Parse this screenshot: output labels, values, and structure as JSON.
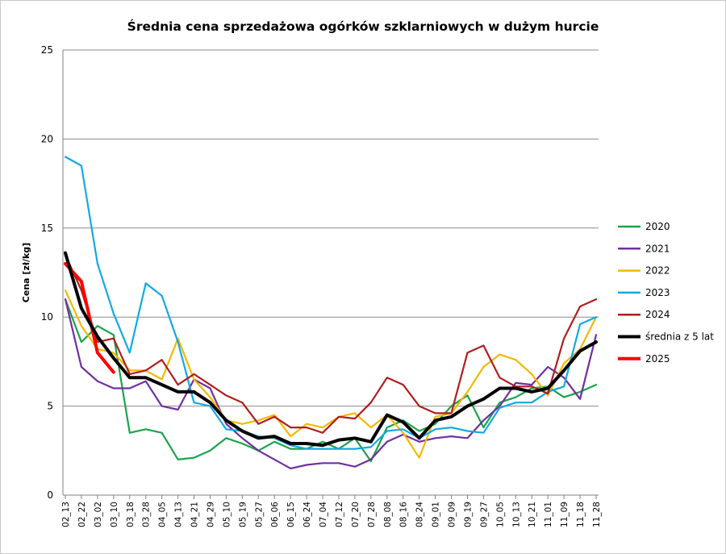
{
  "chart_data": {
    "type": "line",
    "title": "Średnia cena sprzedażowa ogórków szklarniowych w dużym hurcie",
    "xlabel": "",
    "ylabel": "Cena [zł/kg]",
    "ylim": [
      0,
      25
    ],
    "yticks": [
      0,
      5,
      10,
      15,
      20,
      25
    ],
    "grid": true,
    "legend_position": "right",
    "x": [
      "02_13",
      "02_22",
      "03_02",
      "03_10",
      "03_18",
      "03_28",
      "04_05",
      "04_13",
      "04_21",
      "04_29",
      "05_10",
      "05_19",
      "05_27",
      "06_06",
      "06_15",
      "06_24",
      "07_04",
      "07_12",
      "07_20",
      "07_28",
      "08_08",
      "08_16",
      "08_24",
      "09_01",
      "09_09",
      "09_19",
      "09_27",
      "10_05",
      "10_13",
      "10_21",
      "11_01",
      "11_09",
      "11_18",
      "11_28"
    ],
    "series": [
      {
        "name": "2020",
        "color": "#1ba34a",
        "values": [
          11.0,
          8.6,
          9.5,
          9.0,
          3.5,
          3.7,
          3.5,
          2.0,
          2.1,
          2.5,
          3.2,
          2.9,
          2.5,
          3.0,
          2.6,
          2.6,
          3.0,
          2.6,
          3.2,
          1.9,
          3.8,
          4.2,
          3.6,
          4.0,
          5.0,
          5.6,
          3.8,
          5.2,
          5.5,
          6.0,
          6.1,
          5.5,
          5.8,
          6.2
        ]
      },
      {
        "name": "2021",
        "color": "#7030a0",
        "values": [
          11.0,
          7.2,
          6.4,
          6.0,
          6.0,
          6.4,
          5.0,
          4.8,
          6.5,
          6.0,
          4.0,
          3.2,
          2.5,
          2.0,
          1.5,
          1.7,
          1.8,
          1.8,
          1.6,
          2.0,
          3.0,
          3.4,
          3.0,
          3.2,
          3.3,
          3.2,
          4.2,
          5.0,
          6.3,
          6.2,
          7.2,
          6.6,
          5.4,
          9.0
        ]
      },
      {
        "name": "2022",
        "color": "#f5b800",
        "values": [
          11.5,
          9.5,
          8.2,
          8.0,
          7.0,
          7.0,
          6.5,
          8.8,
          6.5,
          5.5,
          4.2,
          4.0,
          4.2,
          4.5,
          3.3,
          4.0,
          3.8,
          4.4,
          4.6,
          3.8,
          4.5,
          3.5,
          2.1,
          4.4,
          4.6,
          5.8,
          7.2,
          7.9,
          7.6,
          6.8,
          5.6,
          7.4,
          8.2,
          10.0
        ]
      },
      {
        "name": "2023",
        "color": "#13a9e3",
        "values": [
          19.0,
          18.5,
          13.0,
          10.2,
          8.0,
          11.9,
          11.2,
          8.6,
          5.2,
          5.0,
          3.7,
          3.6,
          3.3,
          3.2,
          2.8,
          2.6,
          2.6,
          2.6,
          2.6,
          2.7,
          3.6,
          3.7,
          3.2,
          3.7,
          3.8,
          3.6,
          3.5,
          4.9,
          5.2,
          5.2,
          5.8,
          6.1,
          9.6,
          10.0
        ]
      },
      {
        "name": "2024",
        "color": "#b01e1e",
        "values": [
          13.5,
          11.5,
          8.6,
          8.8,
          6.8,
          7.0,
          7.6,
          6.2,
          6.8,
          6.2,
          5.6,
          5.2,
          4.0,
          4.4,
          3.8,
          3.8,
          3.5,
          4.4,
          4.3,
          5.2,
          6.6,
          6.2,
          5.0,
          4.6,
          4.6,
          8.0,
          8.4,
          6.6,
          6.1,
          6.1,
          5.7,
          8.8,
          10.6,
          11.0
        ]
      },
      {
        "name": "średnia z 5 lat",
        "color": "#000000",
        "values": [
          13.6,
          10.5,
          8.9,
          7.7,
          6.6,
          6.6,
          6.2,
          5.8,
          5.8,
          5.2,
          4.2,
          3.6,
          3.2,
          3.3,
          2.9,
          2.9,
          2.8,
          3.1,
          3.2,
          3.0,
          4.5,
          4.1,
          3.2,
          4.2,
          4.4,
          5.0,
          5.4,
          6.0,
          6.0,
          5.8,
          6.0,
          7.0,
          8.1,
          8.6
        ]
      },
      {
        "name": "2025",
        "color": "#ff0000",
        "bold": true,
        "values": [
          13.0,
          12.0,
          8.0,
          6.9,
          null,
          null,
          null,
          null,
          null,
          null,
          null,
          null,
          null,
          null,
          null,
          null,
          null,
          null,
          null,
          null,
          null,
          null,
          null,
          null,
          null,
          null,
          null,
          null,
          null,
          null,
          null,
          null,
          null,
          null
        ]
      }
    ]
  }
}
